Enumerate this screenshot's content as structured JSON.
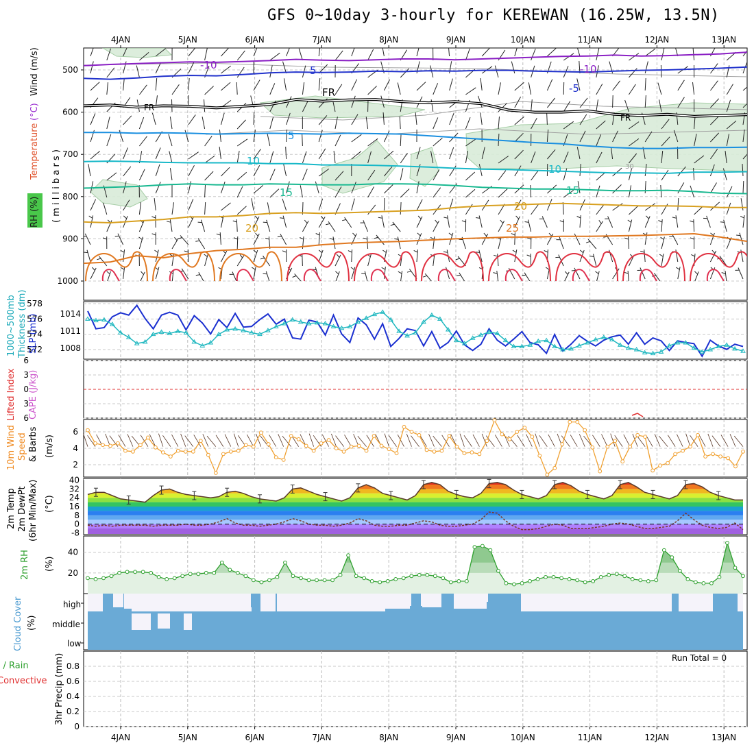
{
  "title": "GFS 0~10day 3-hourly for KEREWAN (16.25W, 13.5N)",
  "days": [
    "4JAN",
    "5JAN",
    "6JAN",
    "7JAN",
    "8JAN",
    "9JAN",
    "10JAN",
    "11JAN",
    "12JAN",
    "13JAN"
  ],
  "colors": {
    "freezing": "#000000",
    "temp_neg10": "#8a1fc4",
    "temp_neg5": "#2233cc",
    "temp_5": "#1a8fe0",
    "temp_10": "#18b8c8",
    "temp_15": "#18b890",
    "temp_20": "#d8a020",
    "temp_25": "#e07820",
    "temp_30": "#e03040",
    "rh_fill": "#d9ecd9",
    "slp": "#1a2fd0",
    "thickness": "#20b8c0",
    "wind": "#f0a030",
    "rh2m": "#2ea02e",
    "cloud": "#6aaad6",
    "lifted_zero": "#e03030"
  },
  "panel_labels": {
    "sounding_rh": "RH (%)",
    "sounding_temp": "Temperature",
    "sounding_temp_unit": "(°C)",
    "sounding_wind": "Wind (m/s)",
    "sounding_p": "( m i l l i b a r s )",
    "thick_a": "1000~500mb",
    "thick_b": "Thickness (dm)",
    "thick_c": "SLP (mb)",
    "li_a": "Lifted Index",
    "li_b": "CAPE (J/kg)",
    "wind_a": "10m Wind",
    "wind_b": "Speed",
    "wind_c": "& Barbs",
    "wind_d": "(m/s)",
    "t_a": "2m Temp",
    "t_b": "2m DewPt",
    "t_c": "(6hr Min/Max)",
    "t_d": "(°C)",
    "rh_a": "2m RH",
    "rh_b": "(%)",
    "cc_a": "Cloud Cover",
    "cc_b": "(%)",
    "pr_a": "3hr Precip (mm)",
    "pr_b": "Total / Rain",
    "pr_c": "Convective",
    "run_total": "Run Total = 0"
  },
  "chart_data": [
    {
      "type": "line",
      "name": "sounding",
      "ylim": [
        1000,
        450
      ],
      "yticks": [
        500,
        600,
        700,
        800,
        900,
        1000
      ],
      "contour_labels": [
        "-10",
        "5",
        "FR",
        "10",
        "5",
        "15",
        "20",
        "25",
        "-10",
        "-5",
        "10",
        "15",
        "20",
        "25",
        "30"
      ],
      "isotherms": [
        {
          "label": "-10",
          "levels": [
            490,
            487,
            485,
            483,
            481,
            482,
            480,
            478,
            475,
            477,
            478,
            476,
            474,
            474,
            476,
            474,
            472,
            470,
            468,
            467,
            465,
            467,
            466,
            464,
            462,
            458
          ]
        },
        {
          "label": "-5",
          "levels": [
            520,
            522,
            519,
            515,
            513,
            514,
            511,
            507,
            505,
            506,
            505,
            503,
            504,
            502,
            503,
            501,
            501,
            503,
            504,
            505,
            503,
            501,
            500,
            498,
            496,
            493
          ]
        },
        {
          "label": "FR",
          "levels": [
            585,
            583,
            588,
            585,
            586,
            590,
            586,
            582,
            570,
            574,
            571,
            570,
            575,
            578,
            575,
            580,
            595,
            600,
            600,
            597,
            605,
            608,
            605,
            610,
            608,
            606
          ]
        },
        {
          "label": "5",
          "levels": [
            648,
            648,
            650,
            649,
            650,
            652,
            651,
            650,
            651,
            652,
            650,
            651,
            652,
            656,
            660,
            664,
            668,
            672,
            675,
            680,
            684,
            686,
            686,
            684,
            684,
            683
          ]
        },
        {
          "label": "10",
          "levels": [
            717,
            716,
            717,
            719,
            720,
            720,
            720,
            722,
            722,
            725,
            725,
            726,
            728,
            730,
            733,
            735,
            736,
            738,
            740,
            742,
            744,
            744,
            745,
            742,
            742,
            741
          ]
        },
        {
          "label": "15",
          "levels": [
            780,
            778,
            776,
            772,
            770,
            772,
            772,
            770,
            771,
            772,
            772,
            770,
            770,
            771,
            774,
            778,
            780,
            782,
            782,
            784,
            786,
            786,
            785,
            788,
            792,
            793
          ]
        },
        {
          "label": "20",
          "levels": [
            860,
            862,
            858,
            854,
            848,
            848,
            845,
            840,
            838,
            840,
            838,
            836,
            834,
            832,
            826,
            822,
            820,
            818,
            816,
            818,
            820,
            822,
            822,
            823,
            826,
            826
          ]
        },
        {
          "label": "25",
          "levels": [
            958,
            955,
            940,
            945,
            935,
            928,
            925,
            920,
            920,
            914,
            910,
            908,
            906,
            903,
            900,
            898,
            896,
            896,
            894,
            894,
            893,
            892,
            890,
            888,
            896,
            906
          ]
        }
      ],
      "wind_barbs": "grid"
    },
    {
      "type": "line",
      "name": "thickness_slp",
      "thickness_ylim": [
        571,
        578
      ],
      "thickness_yticks": [
        572,
        574,
        576,
        578
      ],
      "slp_yticks": [
        1008,
        1011,
        1014
      ],
      "series": [
        {
          "name": "SLP",
          "values": [
            1014.5,
            1011.4,
            1011.6,
            1013.5,
            1014.2,
            1013.8,
            1015.5,
            1013.2,
            1011.4,
            1013.8,
            1014.3,
            1013.8,
            1011.2,
            1013.7,
            1012.4,
            1010.5,
            1013.0,
            1011.6,
            1014.1,
            1011.7,
            1011.8,
            1013.0,
            1014.0,
            1012.2,
            1013.1,
            1009.8,
            1009.6,
            1012.9,
            1012.6,
            1010.3,
            1013.8,
            1010.5,
            1009.0,
            1013.3,
            1012.1,
            1009.6,
            1012.3,
            1008.3,
            1009.7,
            1011.4,
            1011.1,
            1008.4,
            1010.9,
            1008.0,
            1009.0,
            1011.0,
            1008.6,
            1007.6,
            1008.7,
            1011.4,
            1009.4,
            1008.4,
            1009.6,
            1010.9,
            1009.0,
            1008.6,
            1007.1,
            1010.4,
            1007.5,
            1008.7,
            1010.2,
            1009.2,
            1008.4,
            1009.4,
            1010.0,
            1010.3,
            1008.7,
            1010.7,
            1008.7,
            1009.8,
            1009.3,
            1007.6,
            1009.3,
            1009.0,
            1008.8,
            1006.6,
            1009.4,
            1008.4,
            1007.8,
            1008.7,
            1008.3
          ]
        },
        {
          "name": "Thickness",
          "values": [
            576.0,
            575.8,
            575.9,
            575.3,
            574.2,
            573.6,
            572.8,
            573.0,
            574.0,
            574.3,
            574.1,
            574.4,
            574.2,
            573.0,
            572.5,
            572.9,
            574.0,
            574.6,
            574.7,
            574.5,
            574.2,
            574.0,
            574.5,
            575.0,
            575.4,
            575.9,
            575.6,
            575.4,
            575.5,
            575.4,
            575.0,
            574.8,
            575.0,
            575.6,
            576.1,
            576.6,
            576.9,
            575.9,
            574.4,
            573.8,
            574.2,
            575.6,
            576.5,
            576.0,
            574.6,
            573.2,
            572.8,
            573.5,
            573.9,
            574.3,
            574.1,
            573.2,
            572.4,
            572.4,
            572.6,
            573.1,
            573.2,
            572.4,
            572.0,
            572.1,
            572.5,
            572.9,
            573.3,
            573.6,
            573.3,
            572.6,
            572.2,
            572.0,
            571.6,
            571.5,
            571.7,
            572.5,
            572.9,
            572.9,
            572.2,
            571.7,
            572.0,
            572.4,
            572.6,
            572.1,
            571.8
          ]
        }
      ]
    },
    {
      "type": "line",
      "name": "lifted_cape",
      "ylim": [
        6,
        -6
      ],
      "yticks": [
        -6,
        -3,
        0,
        3,
        6
      ],
      "series": [
        {
          "name": "Lifted Index",
          "values": []
        }
      ]
    },
    {
      "type": "line",
      "name": "wind10m",
      "ylim": [
        0.5,
        7.5
      ],
      "yticks": [
        2,
        4,
        6
      ],
      "series": [
        {
          "name": "Speed",
          "values": [
            6.2,
            4.6,
            4.4,
            4.3,
            4.6,
            3.7,
            3.6,
            4.4,
            5.3,
            4.1,
            3.5,
            3.0,
            3.7,
            3.6,
            3.6,
            4.9,
            3.2,
            1.0,
            3.3,
            3.6,
            3.7,
            4.4,
            4.2,
            5.9,
            4.5,
            2.9,
            2.6,
            5.5,
            5.1,
            4.3,
            3.7,
            4.6,
            5.0,
            4.0,
            3.6,
            4.2,
            4.3,
            3.7,
            5.5,
            4.3,
            3.9,
            3.4,
            6.6,
            6.0,
            5.6,
            3.8,
            3.6,
            3.7,
            5.5,
            4.2,
            3.4,
            3.5,
            3.3,
            4.9,
            7.4,
            5.7,
            5.1,
            6.0,
            6.5,
            5.4,
            3.1,
            0.8,
            1.6,
            4.5,
            7.2,
            7.2,
            6.2,
            4.1,
            1.2,
            4.2,
            4.9,
            2.4,
            4.2,
            5.6,
            5.4,
            1.3,
            1.9,
            2.2,
            3.3,
            3.7,
            4.2,
            5.6,
            3.0,
            3.3,
            3.0,
            2.8,
            1.8,
            3.6
          ]
        }
      ]
    },
    {
      "type": "area",
      "name": "temp2m",
      "ylim": [
        -9,
        41
      ],
      "yticks": [
        -8,
        0,
        8,
        16,
        24,
        32,
        40
      ],
      "series": [
        {
          "name": "Temp",
          "values": [
            27,
            29,
            29,
            26,
            23,
            22,
            21,
            20,
            26,
            31,
            32,
            29,
            27,
            26,
            25,
            24,
            25,
            29,
            30,
            28,
            25,
            23,
            22,
            21,
            24,
            32,
            33,
            30,
            27,
            25,
            23,
            21,
            24,
            33,
            36,
            33,
            28,
            26,
            24,
            22,
            26,
            36,
            38,
            36,
            30,
            27,
            25,
            24,
            28,
            37,
            38,
            36,
            31,
            27,
            25,
            23,
            26,
            36,
            38,
            35,
            30,
            27,
            25,
            23,
            26,
            36,
            38,
            34,
            29,
            27,
            25,
            23,
            26,
            36,
            37,
            34,
            29,
            26,
            24,
            22,
            22
          ]
        },
        {
          "name": "DewPt",
          "values": [
            -1,
            -2,
            -1,
            -2,
            -1,
            -1,
            -1,
            -1,
            -2,
            -1,
            -1,
            -1,
            0,
            -1,
            -1,
            0,
            2,
            5,
            1,
            -1,
            -1,
            -2,
            -1,
            0,
            2,
            5,
            3,
            0,
            -1,
            -1,
            -2,
            -1,
            1,
            5,
            3,
            -1,
            -2,
            -2,
            -1,
            -1,
            1,
            3,
            2,
            -1,
            -2,
            -2,
            -1,
            0,
            4,
            11,
            10,
            3,
            -2,
            -5,
            -5,
            -4,
            -2,
            0,
            -1,
            -4,
            -4,
            -4,
            -3,
            -2,
            0,
            1,
            0,
            -2,
            -4,
            -4,
            -3,
            -2,
            3,
            10,
            4,
            -1,
            -3,
            -4,
            -3,
            1,
            -5
          ]
        }
      ],
      "band_colors": [
        "#a060e0",
        "#b080ff",
        "#a6c8ff",
        "#60a8f0",
        "#2b7ff0",
        "#1aa0d0",
        "#34c460",
        "#8ee040",
        "#d8f030",
        "#f0b820",
        "#f07820",
        "#e03020",
        "#b01010"
      ]
    },
    {
      "type": "area",
      "name": "rh2m",
      "ylim": [
        0,
        55
      ],
      "yticks": [
        20,
        40
      ],
      "series": [
        {
          "name": "RH",
          "values": [
            15,
            14,
            15,
            17,
            20,
            21,
            21,
            21,
            20,
            16,
            14,
            15,
            17,
            19,
            19,
            20,
            20,
            30,
            23,
            20,
            17,
            13,
            11,
            13,
            16,
            30,
            17,
            15,
            13,
            13,
            13,
            13,
            18,
            37,
            17,
            15,
            12,
            11,
            12,
            14,
            15,
            17,
            18,
            18,
            17,
            15,
            11,
            12,
            12,
            45,
            46,
            42,
            22,
            10,
            9,
            10,
            12,
            14,
            16,
            16,
            15,
            14,
            13,
            11,
            12,
            16,
            18,
            19,
            17,
            14,
            13,
            12,
            13,
            42,
            35,
            22,
            14,
            11,
            10,
            10,
            16,
            49,
            25,
            17
          ]
        }
      ]
    },
    {
      "type": "bar",
      "name": "cloud_cover",
      "ylim": [
        0,
        100
      ],
      "categories": [
        "high",
        "middle",
        "low"
      ]
    },
    {
      "type": "bar",
      "name": "precip",
      "ylim": [
        0,
        1
      ],
      "yticks": [
        0,
        0.2,
        0.4,
        0.6,
        0.8
      ],
      "series": [
        {
          "name": "Total / Rain",
          "values": []
        }
      ]
    }
  ]
}
